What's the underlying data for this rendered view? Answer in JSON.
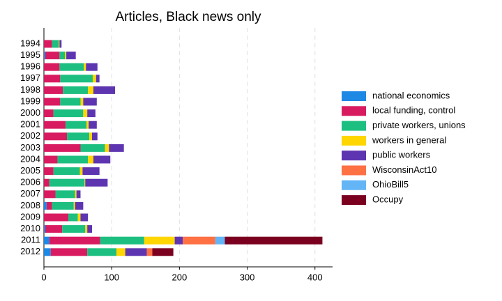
{
  "chart_data": {
    "type": "stacked-barh",
    "title": "Articles, Black news only",
    "categories": [
      "1994",
      "1995",
      "1996",
      "1997",
      "1998",
      "1999",
      "2000",
      "2001",
      "2002",
      "2003",
      "2004",
      "2005",
      "2006",
      "2007",
      "2008",
      "2009",
      "2010",
      "2011",
      "2012"
    ],
    "series": [
      {
        "name": "national economics",
        "color": "#1e88e5",
        "values": [
          0,
          2,
          0,
          0,
          0,
          0,
          0,
          0,
          0,
          0,
          0,
          0,
          0,
          0,
          4,
          0,
          2,
          8,
          10
        ]
      },
      {
        "name": "local funding, control",
        "color": "#d81b60",
        "values": [
          12,
          21,
          23,
          24,
          28,
          24,
          14,
          32,
          34,
          54,
          20,
          14,
          8,
          17,
          8,
          36,
          25,
          75,
          54
        ]
      },
      {
        "name": "private workers, unions",
        "color": "#1dbf80",
        "values": [
          10,
          8,
          36,
          48,
          37,
          30,
          44,
          31,
          33,
          36,
          45,
          39,
          52,
          29,
          32,
          14,
          34,
          65,
          43
        ]
      },
      {
        "name": "workers in general",
        "color": "#ffd600",
        "values": [
          1,
          2,
          3,
          5,
          8,
          4,
          6,
          3,
          4,
          6,
          8,
          4,
          1,
          2,
          2,
          4,
          3,
          45,
          13
        ]
      },
      {
        "name": "public workers",
        "color": "#5e35b1",
        "values": [
          3,
          14,
          17,
          5,
          32,
          20,
          12,
          12,
          8,
          22,
          25,
          25,
          33,
          6,
          12,
          11,
          7,
          12,
          32
        ]
      },
      {
        "name": "WisconsinAct10",
        "color": "#ff7043",
        "values": [
          0,
          0,
          0,
          0,
          0,
          0,
          0,
          0,
          0,
          0,
          0,
          0,
          0,
          0,
          0,
          0,
          0,
          48,
          8
        ]
      },
      {
        "name": "OhioBill5",
        "color": "#64b5f6",
        "values": [
          0,
          0,
          0,
          0,
          0,
          0,
          0,
          0,
          0,
          0,
          0,
          0,
          0,
          0,
          0,
          0,
          0,
          14,
          0
        ]
      },
      {
        "name": "Occupy",
        "color": "#7b0020",
        "values": [
          0,
          0,
          0,
          0,
          0,
          0,
          0,
          0,
          0,
          0,
          0,
          0,
          0,
          0,
          0,
          0,
          0,
          144,
          31
        ]
      }
    ],
    "xlim": [
      0,
      426
    ],
    "xticks": [
      0,
      100,
      200,
      300,
      400
    ],
    "grid": true,
    "legend": "right"
  }
}
